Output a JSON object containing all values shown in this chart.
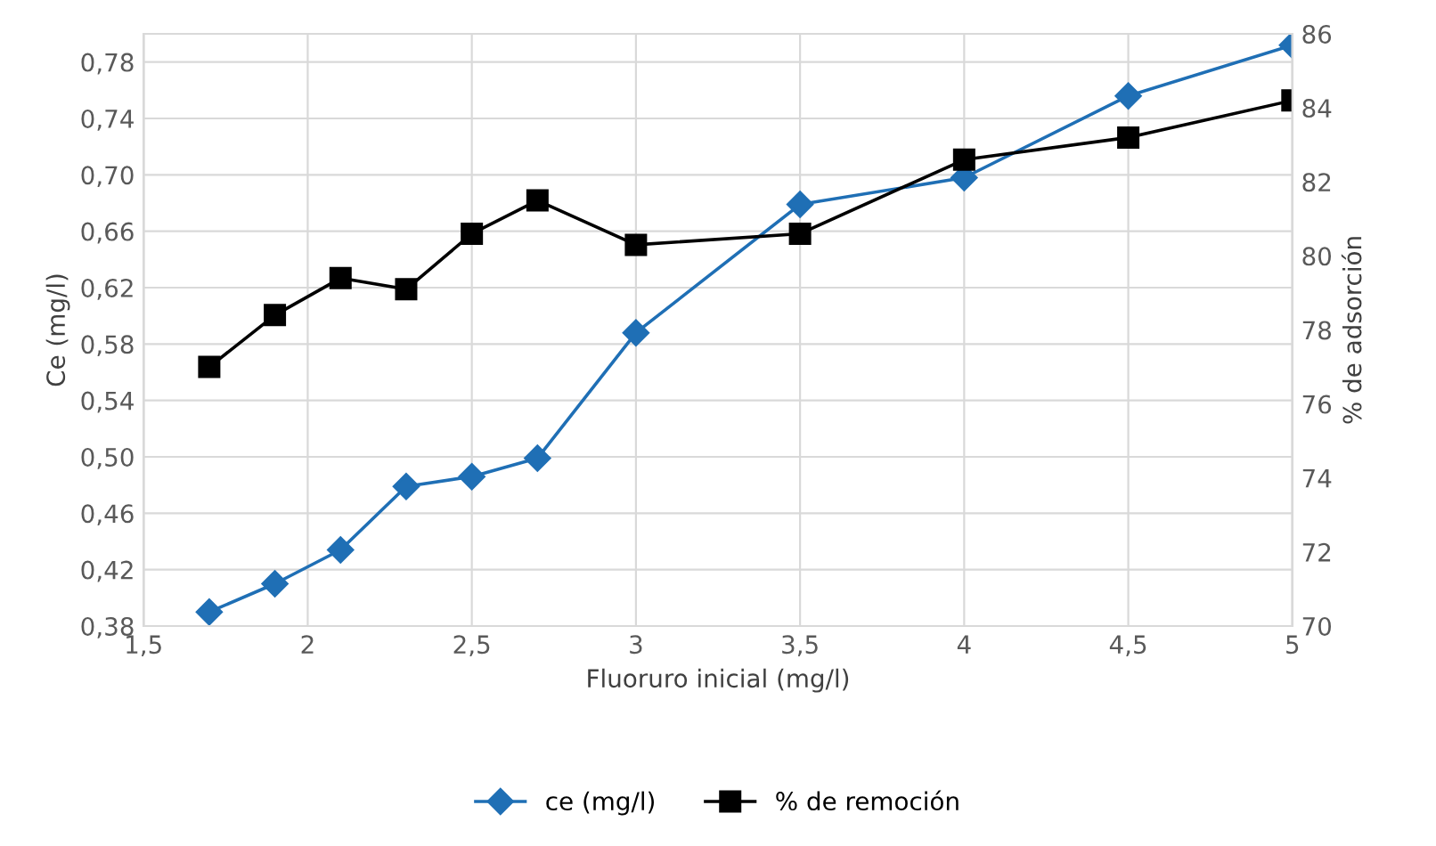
{
  "chart_data": {
    "type": "line",
    "xlabel": "Fluoruro inicial (mg/l)",
    "ylabel": "Ce (mg/l)",
    "y2label": "% de adsorción",
    "x": [
      1.7,
      1.9,
      2.1,
      2.3,
      2.5,
      2.7,
      3.0,
      3.5,
      4.0,
      4.5,
      5.0
    ],
    "series": [
      {
        "name": "ce (mg/l)",
        "color": "#1f6fb5",
        "marker": "diamond",
        "values": [
          0.39,
          0.41,
          0.434,
          0.479,
          0.486,
          0.499,
          0.588,
          0.679,
          0.698,
          0.756,
          0.792
        ]
      },
      {
        "name": "% de remoción",
        "color": "#000000",
        "marker": "square",
        "axis": "y2",
        "values": [
          77.0,
          78.4,
          79.4,
          79.1,
          80.6,
          81.5,
          80.3,
          80.6,
          82.6,
          83.2,
          84.2
        ]
      }
    ],
    "xlim": [
      1.5,
      5
    ],
    "xticks": [
      {
        "value": 1.5,
        "label": "1,5"
      },
      2,
      {
        "value": 2.5,
        "label": "2,5"
      },
      3,
      {
        "value": 3.5,
        "label": "3,5"
      },
      4,
      {
        "value": 4.5,
        "label": "4,5"
      },
      5
    ],
    "ylim": [
      0.38,
      0.8
    ],
    "yticks": [
      {
        "value": 0.38,
        "label": "0,38"
      },
      {
        "value": 0.42,
        "label": "0,42"
      },
      {
        "value": 0.46,
        "label": "0,46"
      },
      {
        "value": 0.5,
        "label": "0,50"
      },
      {
        "value": 0.54,
        "label": "0,54"
      },
      {
        "value": 0.58,
        "label": "0,58"
      },
      {
        "value": 0.62,
        "label": "0,62"
      },
      {
        "value": 0.66,
        "label": "0,66"
      },
      {
        "value": 0.7,
        "label": "0,70"
      },
      {
        "value": 0.74,
        "label": "0,74"
      },
      {
        "value": 0.78,
        "label": "0,78"
      }
    ],
    "y2lim": [
      70,
      86
    ],
    "y2ticks": [
      70,
      72,
      74,
      76,
      78,
      80,
      82,
      84,
      86
    ],
    "grid": true,
    "legend": "bottom",
    "line_style": "solid"
  }
}
